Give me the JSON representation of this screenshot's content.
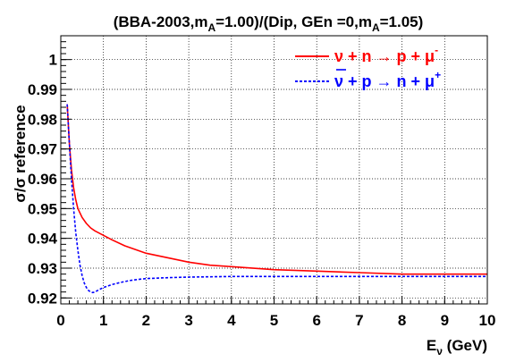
{
  "chart_data": {
    "type": "line",
    "title": "(BBA-2003,m_A=1.00)/(Dip, GEn =0,m_A=1.05)",
    "title_parts": {
      "p1": "(BBA-2003,m",
      "sub1": "A",
      "p2": "=1.00)/(Dip, GEn =0,m",
      "sub2": "A",
      "p3": "=1.05)"
    },
    "xlabel": "E_ν (GeV)",
    "xlabel_parts": {
      "main": "E",
      "sub": "ν",
      "unit": " (GeV)"
    },
    "ylabel": "σ/σ reference",
    "xlim": [
      0,
      10
    ],
    "ylim": [
      0.918,
      1.008
    ],
    "xticks": [
      0,
      1,
      2,
      3,
      4,
      5,
      6,
      7,
      8,
      9,
      10
    ],
    "yticks": [
      0.92,
      0.93,
      0.94,
      0.95,
      0.96,
      0.97,
      0.98,
      0.99,
      1.0
    ],
    "ytick_labels": [
      "0.92",
      "0.93",
      "0.94",
      "0.95",
      "0.96",
      "0.97",
      "0.98",
      "0.99",
      "1"
    ],
    "grid": true,
    "legend_position": "top-right",
    "series": [
      {
        "name": "ν + n → p + μ⁻",
        "legend_parts": {
          "lhs": "ν + n ",
          "arrow": "→",
          "rhs": " p + μ",
          "sup": "-"
        },
        "color": "#ff0000",
        "style": "solid",
        "x": [
          0.15,
          0.2,
          0.25,
          0.3,
          0.35,
          0.4,
          0.5,
          0.6,
          0.7,
          0.8,
          1.0,
          1.2,
          1.5,
          2.0,
          2.5,
          3.0,
          3.5,
          4.0,
          5.0,
          6.0,
          7.0,
          8.0,
          9.0,
          10.0
        ],
        "y": [
          0.985,
          0.972,
          0.963,
          0.957,
          0.953,
          0.95,
          0.947,
          0.945,
          0.9435,
          0.9425,
          0.941,
          0.9395,
          0.9375,
          0.935,
          0.9335,
          0.932,
          0.931,
          0.9305,
          0.9295,
          0.929,
          0.9285,
          0.928,
          0.928,
          0.928
        ]
      },
      {
        "name": "ν̄ + p → n + μ⁺",
        "legend_parts": {
          "nu": "ν",
          "lhs": " + p ",
          "arrow": "→",
          "rhs": " n + μ",
          "sup": "+"
        },
        "color": "#0000ff",
        "style": "dashed",
        "x": [
          0.15,
          0.2,
          0.25,
          0.3,
          0.35,
          0.4,
          0.45,
          0.5,
          0.55,
          0.6,
          0.65,
          0.7,
          0.75,
          0.8,
          0.9,
          1.0,
          1.1,
          1.2,
          1.4,
          1.6,
          1.8,
          2.0,
          2.5,
          3.0,
          4.0,
          5.0,
          6.0,
          7.0,
          8.0,
          9.0,
          10.0
        ],
        "y": [
          0.985,
          0.972,
          0.96,
          0.95,
          0.942,
          0.936,
          0.931,
          0.9275,
          0.925,
          0.9235,
          0.9225,
          0.922,
          0.9218,
          0.922,
          0.9228,
          0.9235,
          0.924,
          0.9245,
          0.9252,
          0.9258,
          0.9262,
          0.9265,
          0.9268,
          0.927,
          0.9272,
          0.9272,
          0.9272,
          0.9272,
          0.9272,
          0.9272,
          0.9272
        ]
      }
    ]
  }
}
